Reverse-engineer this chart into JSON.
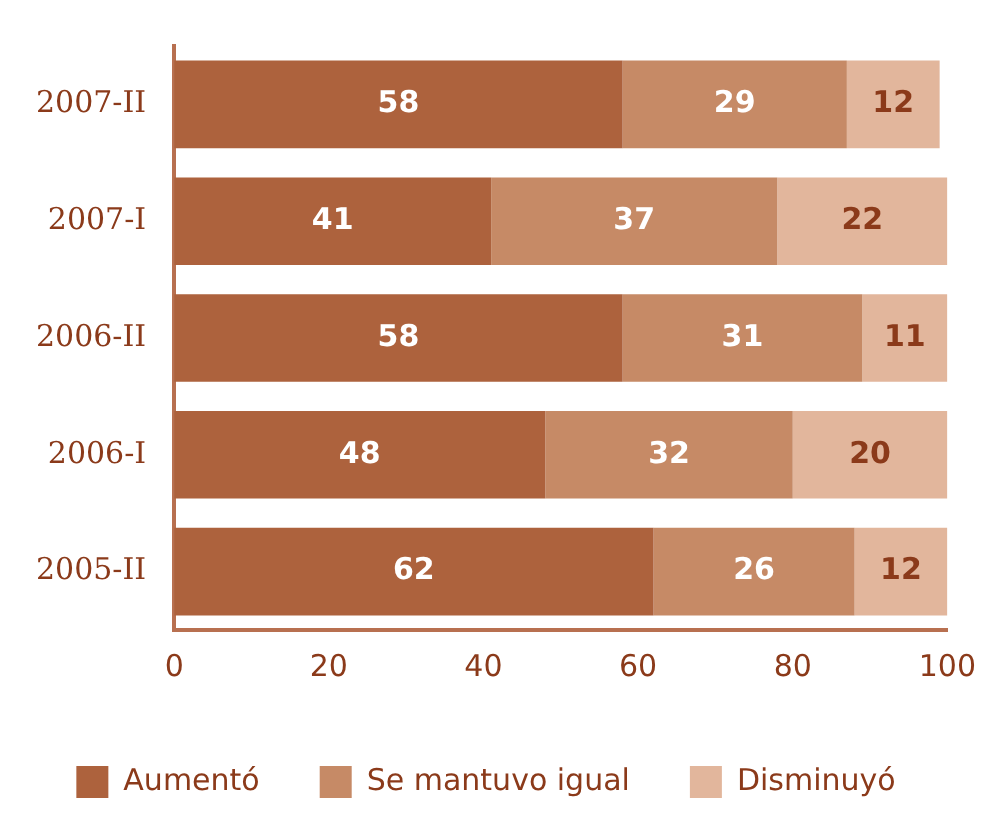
{
  "chart_data": {
    "type": "bar",
    "orientation": "horizontal",
    "stacked": true,
    "categories": [
      "2007-II",
      "2007-I",
      "2006-II",
      "2006-I",
      "2005-II"
    ],
    "series": [
      {
        "name": "Aumentó",
        "color": "#ad623d",
        "values": [
          58,
          41,
          58,
          48,
          62
        ]
      },
      {
        "name": "Se mantuvo igual",
        "color": "#c68a66",
        "values": [
          29,
          37,
          31,
          32,
          26
        ]
      },
      {
        "name": "Disminuyó",
        "color": "#e2b69c",
        "values": [
          12,
          22,
          11,
          20,
          12
        ]
      }
    ],
    "xlim": [
      0,
      100
    ],
    "xticks": [
      0,
      20,
      40,
      60,
      80,
      100
    ],
    "grid": false,
    "legend": "bottom",
    "data_labels": true
  }
}
